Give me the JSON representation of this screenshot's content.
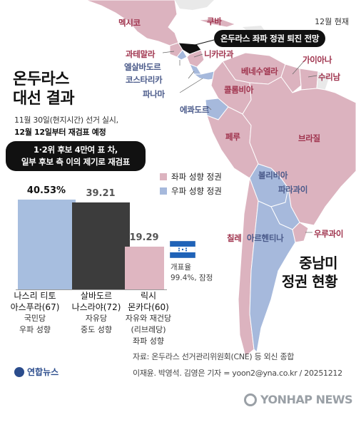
{
  "header": {
    "date_note": "12월 현재",
    "callout": "온두라스 좌파 정권 퇴진 전망"
  },
  "title": {
    "line1": "온두라스",
    "line2": "대선 결과",
    "sub1": "11월 30일(현지시간) 선거 실시,",
    "sub2": "12월 12일부터 재검표 예정"
  },
  "headline": {
    "line1": "1·2위 후보 4만여 표 차,",
    "line2": "일부 후보 측 이의 제기로 재검표"
  },
  "colors": {
    "left_leaning": "#dcb3bf",
    "right_leaning": "#a6b9dc",
    "nonelected": "#e9e9e9",
    "sea": "#ffffff",
    "bar_blue": "#a7bedf",
    "bar_dark": "#3c3c3c",
    "bar_pink": "#dfb6c1"
  },
  "legend": {
    "left": "좌파 성향 정권",
    "right": "우파 성향 정권"
  },
  "countries": [
    {
      "name": "멕시코",
      "lean": "left"
    },
    {
      "name": "쿠바",
      "lean": "left"
    },
    {
      "name": "과테말라",
      "lean": "left"
    },
    {
      "name": "니카라과",
      "lean": "left"
    },
    {
      "name": "엘살바도르",
      "lean": "right"
    },
    {
      "name": "코스타리카",
      "lean": "right"
    },
    {
      "name": "파나마",
      "lean": "right"
    },
    {
      "name": "베네수엘라",
      "lean": "left"
    },
    {
      "name": "가이아나",
      "lean": "left"
    },
    {
      "name": "수리남",
      "lean": "left"
    },
    {
      "name": "콜롬비아",
      "lean": "left"
    },
    {
      "name": "에콰도르",
      "lean": "right"
    },
    {
      "name": "페루",
      "lean": "left"
    },
    {
      "name": "브라질",
      "lean": "left"
    },
    {
      "name": "볼리비아",
      "lean": "right"
    },
    {
      "name": "파라과이",
      "lean": "right"
    },
    {
      "name": "칠레",
      "lean": "left"
    },
    {
      "name": "아르헨티나",
      "lean": "right"
    },
    {
      "name": "우루과이",
      "lean": "left"
    }
  ],
  "chart_data": {
    "type": "bar",
    "categories": [
      "나스리 티토 아스푸라(67)",
      "살바도르 나스라야(72)",
      "릭시 몬카다(60)"
    ],
    "values": [
      40.53,
      39.21,
      19.29
    ],
    "value_labels": [
      "40.53%",
      "39.21",
      "19.29"
    ],
    "ylim": [
      0,
      45
    ]
  },
  "candidates": [
    {
      "name1": "나스리 티토",
      "name2": "아스푸라(67)",
      "party": "국민당",
      "lean": "우파 성향"
    },
    {
      "name1": "살바도르",
      "name2": "나스라야(72)",
      "party": "자유당",
      "lean": "중도 성향"
    },
    {
      "name1": "릭시",
      "name2": "몬카다(60)",
      "party": "자유와 재건당",
      "party2": "(리브레당)",
      "lean": "좌파 성향"
    }
  ],
  "turnout": {
    "line1": "개표율",
    "line2": "99.4%, 잠정"
  },
  "region_title": {
    "line1": "중남미",
    "line2": "정권 현황"
  },
  "footer": {
    "source": "자료: 온두라스 선거관리위원회(CNE) 등 외신 종합",
    "credit": "이재윤. 박영석. 김영은 기자 = yoon2@yna.co.kr / 20251212",
    "logo": "연합뉴스",
    "watermark": "YONHAP NEWS"
  }
}
